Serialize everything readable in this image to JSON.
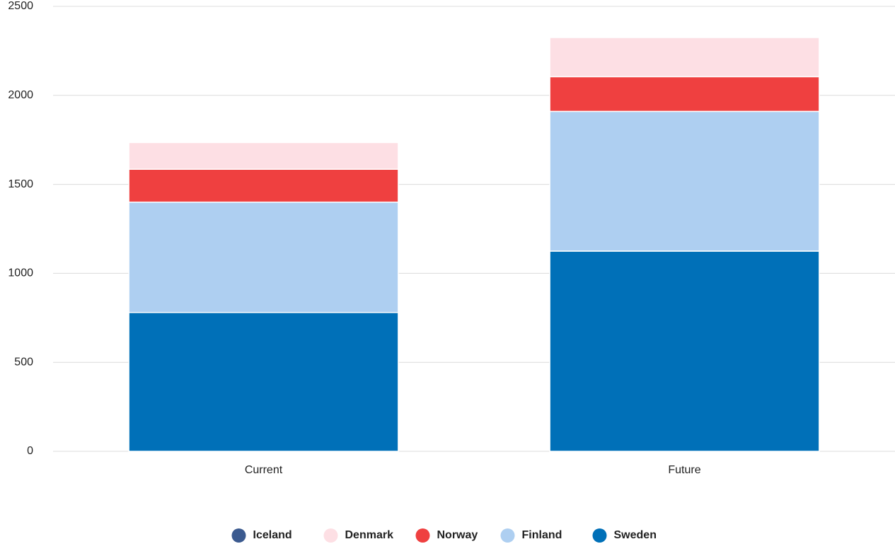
{
  "chart_data": {
    "type": "stacked_bar",
    "categories": [
      "Current",
      "Future"
    ],
    "series": [
      {
        "name": "Iceland",
        "color": "#3b5a8f",
        "values": [
          0,
          0
        ]
      },
      {
        "name": "Denmark",
        "color": "#fddfe4",
        "values": [
          150,
          220
        ]
      },
      {
        "name": "Norway",
        "color": "#ef4040",
        "values": [
          185,
          195
        ]
      },
      {
        "name": "Finland",
        "color": "#aecff1",
        "values": [
          620,
          785
        ]
      },
      {
        "name": "Sweden",
        "color": "#0070b8",
        "values": [
          780,
          1125
        ]
      }
    ],
    "ylim": [
      0,
      2500
    ],
    "yticks": [
      0,
      500,
      1000,
      1500,
      2000,
      2500
    ],
    "grid": true,
    "legend": "bottom"
  }
}
